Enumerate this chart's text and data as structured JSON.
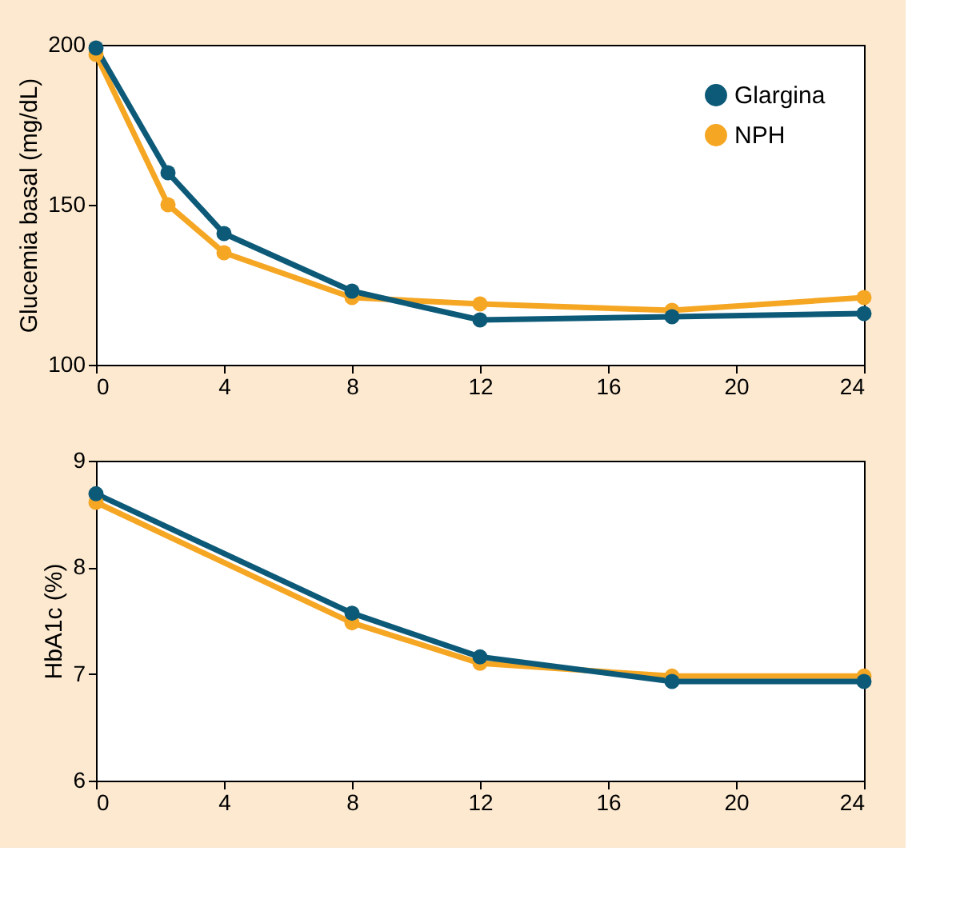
{
  "chart_data": [
    {
      "type": "line",
      "ylabel": "Glucemia basal (mg/dL)",
      "x": [
        0,
        2.25,
        4,
        8,
        12,
        18,
        24
      ],
      "xlim": [
        0,
        24
      ],
      "xticks": [
        0,
        4,
        8,
        12,
        16,
        20,
        24
      ],
      "ylim": [
        100,
        200
      ],
      "yticks": [
        100,
        150,
        200
      ],
      "grid": false,
      "legend": "top right",
      "marker": "circle",
      "line_style": "solid",
      "series": [
        {
          "name": "Glargina",
          "color": "#0d5a78",
          "values": [
            199,
            160,
            141,
            123,
            114,
            115,
            116
          ]
        },
        {
          "name": "NPH",
          "color": "#f5a623",
          "values": [
            197,
            150,
            135,
            121,
            119,
            117,
            121
          ]
        }
      ]
    },
    {
      "type": "line",
      "ylabel": "HbA1c (%)",
      "x": [
        0,
        8,
        12,
        18,
        24
      ],
      "xlim": [
        0,
        24
      ],
      "xticks": [
        0,
        4,
        8,
        12,
        16,
        20,
        24
      ],
      "ylim": [
        6,
        9
      ],
      "yticks": [
        6,
        7,
        8,
        9
      ],
      "grid": false,
      "legend": "top right",
      "marker": "circle",
      "line_style": "solid",
      "series": [
        {
          "name": "Glargina",
          "color": "#0d5a78",
          "values": [
            8.69,
            7.57,
            7.16,
            6.93,
            6.93
          ]
        },
        {
          "name": "NPH",
          "color": "#f5a623",
          "values": [
            8.61,
            7.48,
            7.1,
            6.98,
            6.98
          ]
        }
      ]
    }
  ]
}
